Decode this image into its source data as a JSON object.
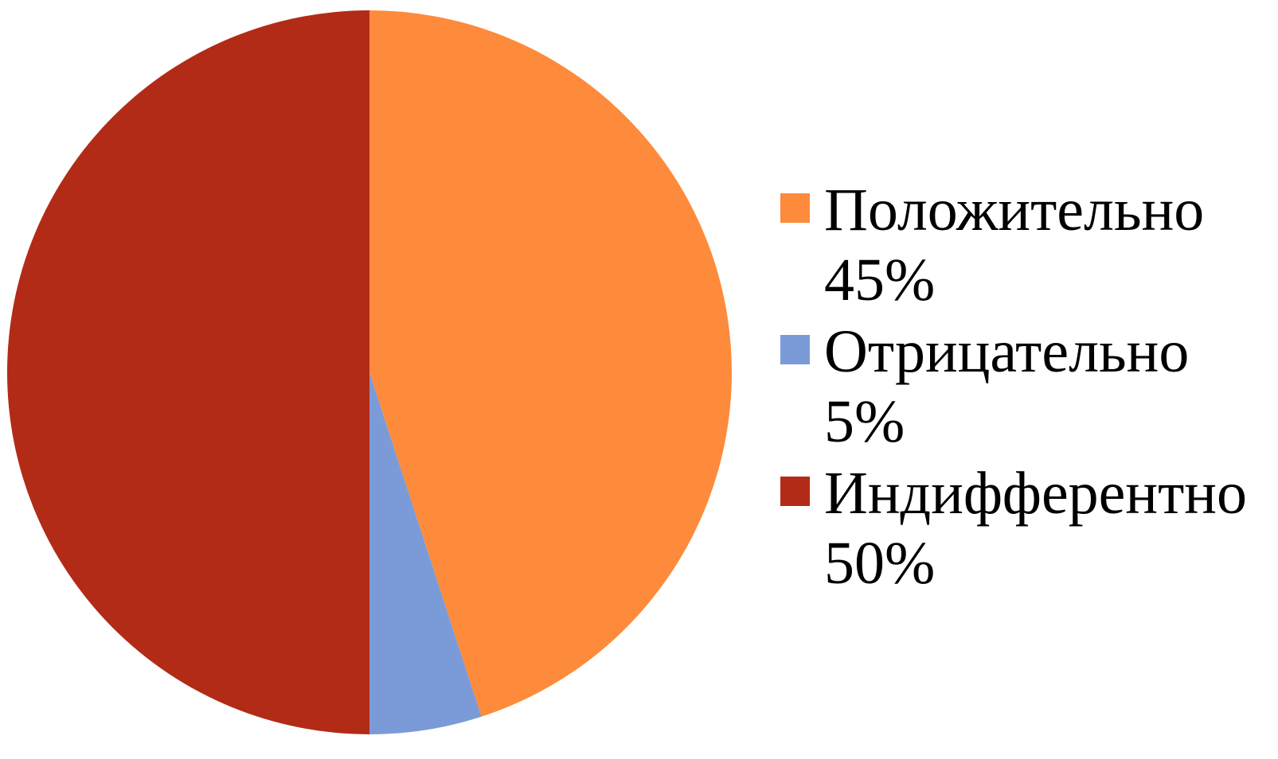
{
  "chart_data": {
    "type": "pie",
    "categories": [
      "Положительно",
      "Отрицательно",
      "Индифферентно"
    ],
    "values": [
      45,
      5,
      50
    ],
    "value_labels": [
      "45%",
      "5%",
      "50%"
    ],
    "colors": [
      "#fd8b3b",
      "#7a9bd8",
      "#b22b17"
    ],
    "legend": "right"
  }
}
